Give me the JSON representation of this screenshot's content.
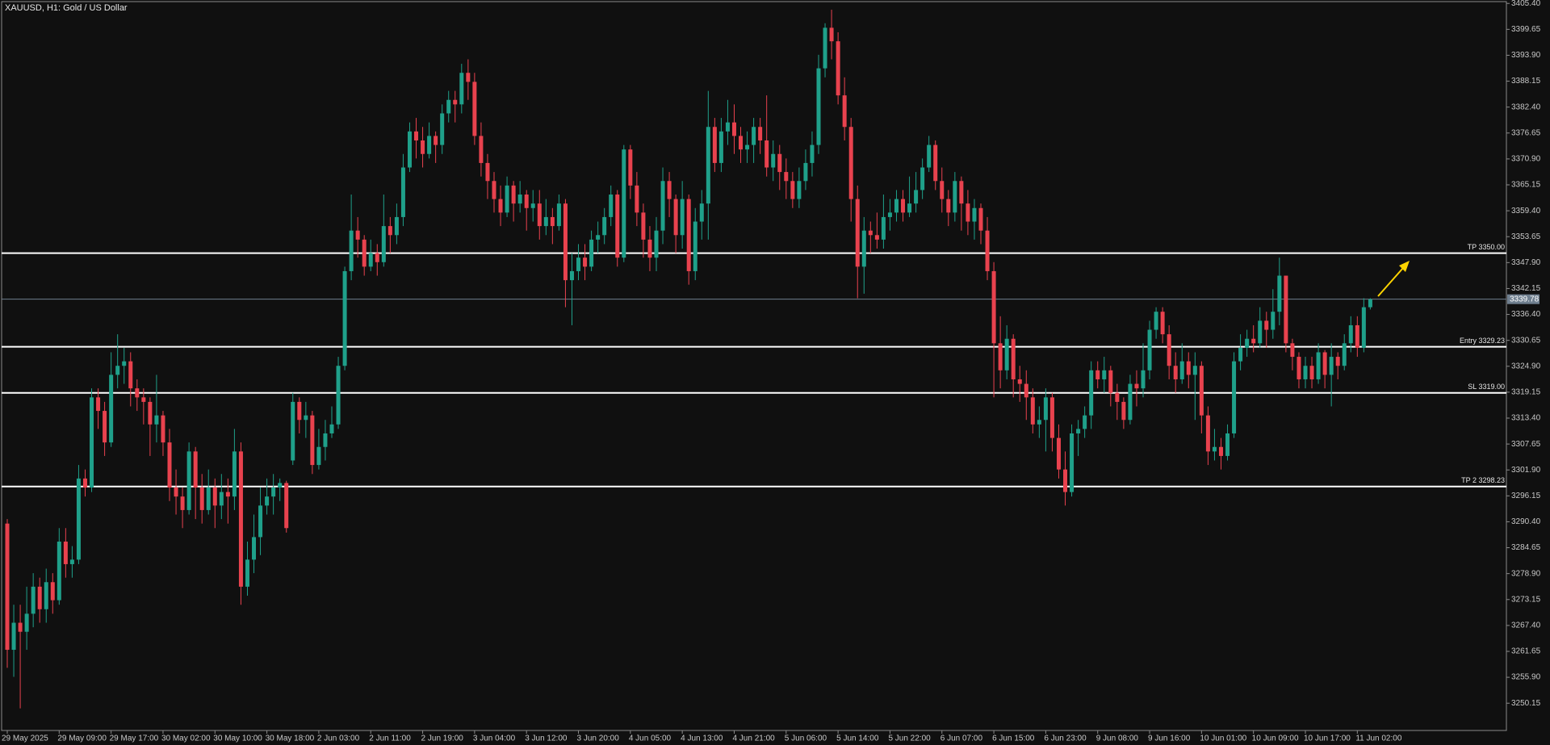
{
  "chart_data": {
    "type": "candlestick",
    "title": "XAUUSD, H1:  Gold / US Dollar",
    "up_color": "#1fa08a",
    "down_color": "#e8424e",
    "categories": [
      "29 May 2025",
      null,
      null,
      null,
      null,
      null,
      null,
      null,
      "29 May 09:00",
      null,
      null,
      null,
      null,
      null,
      null,
      null,
      "29 May 17:00",
      null,
      null,
      null,
      null,
      null,
      null,
      null,
      "30 May 02:00",
      null,
      null,
      null,
      null,
      null,
      null,
      null,
      "30 May 10:00",
      null,
      null,
      null,
      null,
      null,
      null,
      null,
      "30 May 18:00",
      null,
      null,
      null,
      null,
      null,
      null,
      null,
      "2 Jun 03:00",
      null,
      null,
      null,
      null,
      null,
      null,
      null,
      "2 Jun 11:00",
      null,
      null,
      null,
      null,
      null,
      null,
      null,
      "2 Jun 19:00",
      null,
      null,
      null,
      null,
      null,
      null,
      null,
      "3 Jun 04:00",
      null,
      null,
      null,
      null,
      null,
      null,
      null,
      "3 Jun 12:00",
      null,
      null,
      null,
      null,
      null,
      null,
      null,
      "3 Jun 20:00",
      null,
      null,
      null,
      null,
      null,
      null,
      null,
      "4 Jun 05:00",
      null,
      null,
      null,
      null,
      null,
      null,
      null,
      "4 Jun 13:00",
      null,
      null,
      null,
      null,
      null,
      null,
      null,
      "4 Jun 21:00",
      null,
      null,
      null,
      null,
      null,
      null,
      null,
      "5 Jun 06:00",
      null,
      null,
      null,
      null,
      null,
      null,
      null,
      "5 Jun 14:00",
      null,
      null,
      null,
      null,
      null,
      null,
      null,
      "5 Jun 22:00",
      null,
      null,
      null,
      null,
      null,
      null,
      null,
      "6 Jun 07:00",
      null,
      null,
      null,
      null,
      null,
      null,
      null,
      "6 Jun 15:00",
      null,
      null,
      null,
      null,
      null,
      null,
      null,
      "6 Jun 23:00",
      null,
      null,
      null,
      null,
      null,
      null,
      null,
      "9 Jun 08:00",
      null,
      null,
      null,
      null,
      null,
      null,
      null,
      "9 Jun 16:00",
      null,
      null,
      null,
      null,
      null,
      null,
      null,
      "10 Jun 01:00",
      null,
      null,
      null,
      null,
      null,
      null,
      null,
      "10 Jun 09:00",
      null,
      null,
      null,
      null,
      null,
      null,
      null,
      "10 Jun 17:00",
      null,
      null,
      null,
      null,
      null,
      null,
      null,
      "11 Jun 02:00",
      null,
      null
    ],
    "open": [
      3290,
      3262,
      3268,
      3266,
      3270,
      3276,
      3271,
      3277,
      3273,
      3286,
      3281,
      3282,
      3300,
      3298,
      3318,
      3315,
      3308,
      3323,
      3325,
      3326,
      3320,
      3318,
      3317,
      3312,
      3314,
      3308,
      3298,
      3296,
      3293,
      3306,
      3298,
      3293,
      3298,
      3294,
      3297,
      3296,
      3306,
      3276,
      3282,
      3287,
      3294,
      3296,
      3298,
      3299,
      3304,
      3317,
      3313,
      3314,
      3303,
      3307,
      3310,
      3312,
      3325,
      3346,
      3355,
      3353,
      3347,
      3350,
      3348,
      3356,
      3354,
      3358,
      3369,
      3377,
      3375,
      3372,
      3376,
      3374,
      3381,
      3384,
      3383,
      3390,
      3388,
      3376,
      3370,
      3366,
      3362,
      3359,
      3365,
      3361,
      3363,
      3360,
      3361,
      3356,
      3358,
      3356,
      3361,
      3344,
      3346,
      3349,
      3347,
      3353,
      3354,
      3358,
      3363,
      3349,
      3373,
      3365,
      3359,
      3353,
      3349,
      3355,
      3366,
      3362,
      3354,
      3362,
      3346,
      3357,
      3361,
      3378,
      3370,
      3377,
      3379,
      3376,
      3373,
      3374,
      3378,
      3375,
      3369,
      3372,
      3368,
      3366,
      3362,
      3366,
      3370,
      3374,
      3391,
      3400,
      3397,
      3385,
      3378,
      3362,
      3347,
      3355,
      3354,
      3353,
      3358,
      3359,
      3362,
      3359,
      3361,
      3364,
      3369,
      3374,
      3366,
      3362,
      3359,
      3366,
      3361,
      3357,
      3360,
      3355,
      3346,
      3330,
      3324,
      3331,
      3322,
      3321,
      3318,
      3312,
      3313,
      3318,
      3309,
      3302,
      3297,
      3310,
      3311,
      3314,
      3324,
      3322,
      3324,
      3319,
      3317,
      3313,
      3321,
      3320,
      3324,
      3333,
      3337,
      3332,
      3325,
      3322,
      3326,
      3323,
      3325,
      3314,
      3306,
      3307,
      3305,
      3310,
      3326,
      3329,
      3331,
      3330,
      3335,
      3333,
      3337,
      3345,
      3330,
      3327,
      3322,
      3325,
      3322,
      3328,
      3323,
      3327,
      3325,
      3330,
      3334,
      3329,
      3338
    ],
    "high": [
      3291,
      3272,
      3272,
      3276,
      3279,
      3278,
      3280,
      3279,
      3289,
      3289,
      3285,
      3303,
      3302,
      3320,
      3320,
      3317,
      3328,
      3332,
      3329,
      3328,
      3322,
      3320,
      3318,
      3323,
      3315,
      3311,
      3302,
      3298,
      3308,
      3307,
      3301,
      3302,
      3300,
      3301,
      3300,
      3311,
      3308,
      3286,
      3292,
      3298,
      3300,
      3301,
      3300,
      3299.5,
      3319,
      3318,
      3317,
      3315,
      3311,
      3313,
      3316,
      3327,
      3347,
      3363,
      3358,
      3354,
      3353,
      3352,
      3363,
      3358,
      3361,
      3372,
      3379,
      3380,
      3378,
      3379,
      3377,
      3383,
      3386,
      3386,
      3392,
      3393,
      3390,
      3379,
      3372,
      3368,
      3365,
      3367,
      3366,
      3366,
      3364,
      3364,
      3364,
      3362,
      3360,
      3363,
      3362,
      3350,
      3352,
      3352,
      3355,
      3357,
      3360,
      3365,
      3364,
      3374,
      3374,
      3368,
      3361,
      3356,
      3358,
      3369,
      3368,
      3363,
      3366,
      3363,
      3360,
      3364,
      3386,
      3380,
      3380,
      3384,
      3383,
      3378,
      3377,
      3380,
      3380,
      3385,
      3375,
      3374,
      3371,
      3368,
      3369,
      3373,
      3377,
      3394,
      3401,
      3404,
      3399,
      3389,
      3380,
      3365,
      3358,
      3357,
      3359,
      3363,
      3362,
      3364,
      3364,
      3367,
      3368,
      3371,
      3376,
      3375,
      3369,
      3364,
      3368,
      3367,
      3364,
      3362,
      3361,
      3358,
      3348,
      3336,
      3334,
      3332,
      3325,
      3324,
      3320,
      3316,
      3320,
      3319,
      3312,
      3306,
      3312,
      3313,
      3316,
      3326,
      3326,
      3327,
      3325,
      3321,
      3318,
      3323,
      3324,
      3330,
      3335,
      3338,
      3338,
      3334,
      3328,
      3330,
      3328,
      3328,
      3326,
      3316,
      3311,
      3309,
      3312,
      3328,
      3332,
      3333,
      3334,
      3338,
      3337,
      3342,
      3349,
      3345,
      3331,
      3328,
      3327,
      3327,
      3330,
      3328.5,
      3330,
      3328,
      3332,
      3336,
      3336,
      3340,
      3340
    ],
    "low": [
      3258,
      3256,
      3249,
      3262,
      3267,
      3268,
      3268,
      3270,
      3272,
      3278,
      3278,
      3281,
      3296,
      3297,
      3311,
      3305,
      3307,
      3320,
      3321,
      3316,
      3315,
      3312,
      3305,
      3308,
      3305,
      3295,
      3292,
      3289,
      3292,
      3291,
      3290,
      3292,
      3289,
      3291,
      3290,
      3293,
      3272,
      3274,
      3279,
      3283,
      3292,
      3292,
      3295,
      3288,
      3303,
      3310,
      3309,
      3301,
      3302,
      3304,
      3309,
      3311,
      3324,
      3344,
      3349,
      3345,
      3346,
      3345,
      3347,
      3350,
      3352,
      3356,
      3368,
      3371,
      3369,
      3371,
      3370,
      3372,
      3379,
      3379,
      3381,
      3384,
      3374,
      3367,
      3362,
      3359,
      3356,
      3358,
      3357,
      3359,
      3355,
      3357,
      3353,
      3354,
      3352,
      3355,
      3338,
      3334,
      3344,
      3344,
      3346,
      3350,
      3352,
      3356,
      3347,
      3348,
      3362,
      3356,
      3349,
      3346,
      3346,
      3352,
      3358,
      3350,
      3351,
      3343,
      3344,
      3353,
      3353,
      3368,
      3368,
      3374,
      3372,
      3370,
      3370,
      3370,
      3372,
      3367,
      3366,
      3364,
      3362,
      3360,
      3360,
      3364,
      3367,
      3372,
      3389,
      3393,
      3383,
      3375,
      3357,
      3340,
      3341,
      3350,
      3351,
      3351,
      3355,
      3357,
      3357,
      3358,
      3359,
      3362,
      3368,
      3364,
      3359,
      3356,
      3357,
      3355,
      3354,
      3353,
      3352,
      3344,
      3318,
      3320,
      3322,
      3318,
      3317,
      3313,
      3310,
      3309,
      3306,
      3306,
      3300,
      3294,
      3296,
      3305,
      3309,
      3311,
      3320,
      3319,
      3316,
      3313,
      3311,
      3312,
      3316,
      3318,
      3322,
      3331,
      3330,
      3322,
      3319,
      3321,
      3320,
      3313,
      3310,
      3303,
      3304,
      3302,
      3304,
      3309,
      3324,
      3327,
      3328,
      3329,
      3329,
      3331,
      3334,
      3328,
      3324,
      3320,
      3320,
      3320,
      3321,
      3320,
      3316,
      3322,
      3324,
      3328,
      3327,
      3328,
      3337.5
    ],
    "close": [
      3262,
      3268,
      3266,
      3270,
      3276,
      3271,
      3277,
      3273,
      3286,
      3281,
      3282,
      3300,
      3298,
      3318,
      3315,
      3308,
      3323,
      3325,
      3326,
      3320,
      3318,
      3317,
      3312,
      3314,
      3308,
      3298,
      3296,
      3293,
      3306,
      3298,
      3293,
      3298,
      3294,
      3297,
      3296,
      3306,
      3276,
      3282,
      3287,
      3294,
      3296,
      3298,
      3299,
      3289,
      3317,
      3313,
      3314,
      3303,
      3307,
      3310,
      3312,
      3325,
      3346,
      3355,
      3353,
      3347,
      3350,
      3348,
      3356,
      3354,
      3358,
      3369,
      3377,
      3375,
      3372,
      3376,
      3374,
      3381,
      3384,
      3383,
      3390,
      3388,
      3376,
      3370,
      3366,
      3362,
      3359,
      3365,
      3361,
      3363,
      3360,
      3361,
      3356,
      3358,
      3356,
      3361,
      3344,
      3346,
      3349,
      3347,
      3353,
      3354,
      3358,
      3363,
      3349,
      3373,
      3365,
      3359,
      3353,
      3349,
      3355,
      3366,
      3362,
      3354,
      3362,
      3346,
      3357,
      3361,
      3378,
      3370,
      3377,
      3379,
      3376,
      3373,
      3374,
      3378,
      3375,
      3369,
      3372,
      3368,
      3366,
      3362,
      3366,
      3370,
      3374,
      3391,
      3400,
      3397,
      3385,
      3378,
      3362,
      3347,
      3355,
      3354,
      3353,
      3358,
      3359,
      3362,
      3359,
      3361,
      3364,
      3369,
      3374,
      3366,
      3362,
      3359,
      3366,
      3361,
      3357,
      3360,
      3355,
      3346,
      3330,
      3324,
      3331,
      3322,
      3321,
      3318,
      3312,
      3313,
      3318,
      3309,
      3302,
      3297,
      3310,
      3311,
      3314,
      3324,
      3322,
      3324,
      3319,
      3317,
      3313,
      3321,
      3320,
      3324,
      3333,
      3337,
      3332,
      3325,
      3322,
      3326,
      3323,
      3325,
      3314,
      3306,
      3307,
      3305,
      3310,
      3326,
      3329,
      3331,
      3330,
      3335,
      3333,
      3337,
      3345,
      3330,
      3327,
      3322,
      3325,
      3322,
      3328,
      3323,
      3327,
      3325,
      3330,
      3334,
      3329,
      3338,
      3339.78
    ],
    "ylim": [
      3244.1,
      3405.8
    ],
    "yticks": [
      3250.15,
      {
        "value": 3255.9,
        "label": "3255.90"
      },
      3261.65,
      {
        "value": 3267.4,
        "label": "3267.40"
      },
      3273.15,
      {
        "value": 3278.9,
        "label": "3278.90"
      },
      3284.65,
      {
        "value": 3290.4,
        "label": "3290.40"
      },
      3296.15,
      {
        "value": 3301.9,
        "label": "3301.90"
      },
      3307.65,
      {
        "value": 3313.4,
        "label": "3313.40"
      },
      3319.15,
      {
        "value": 3324.9,
        "label": "3324.90"
      },
      3330.65,
      {
        "value": 3336.4,
        "label": "3336.40"
      },
      3342.15,
      {
        "value": 3347.9,
        "label": "3347.90"
      },
      3353.65,
      {
        "value": 3359.4,
        "label": "3359.40"
      },
      3365.15,
      {
        "value": 3370.9,
        "label": "3370.90"
      },
      3376.65,
      {
        "value": 3382.4,
        "label": "3382.40"
      },
      3388.15,
      {
        "value": 3393.9,
        "label": "3393.90"
      },
      3399.65,
      {
        "value": 3405.4,
        "label": "3405.40"
      }
    ],
    "grid": false,
    "levels": [
      {
        "name": "TP 3350.00",
        "value": 3350
      },
      {
        "name": "Entry 3329.23",
        "value": 3329.23
      },
      {
        "name": "SL 3319.00",
        "value": 3319
      },
      {
        "name": "TP 2 3298.23",
        "value": 3298.23
      }
    ],
    "level_color": "#ffffff",
    "last_price": 3339.78,
    "last_price_color": "#6f7f8f"
  }
}
